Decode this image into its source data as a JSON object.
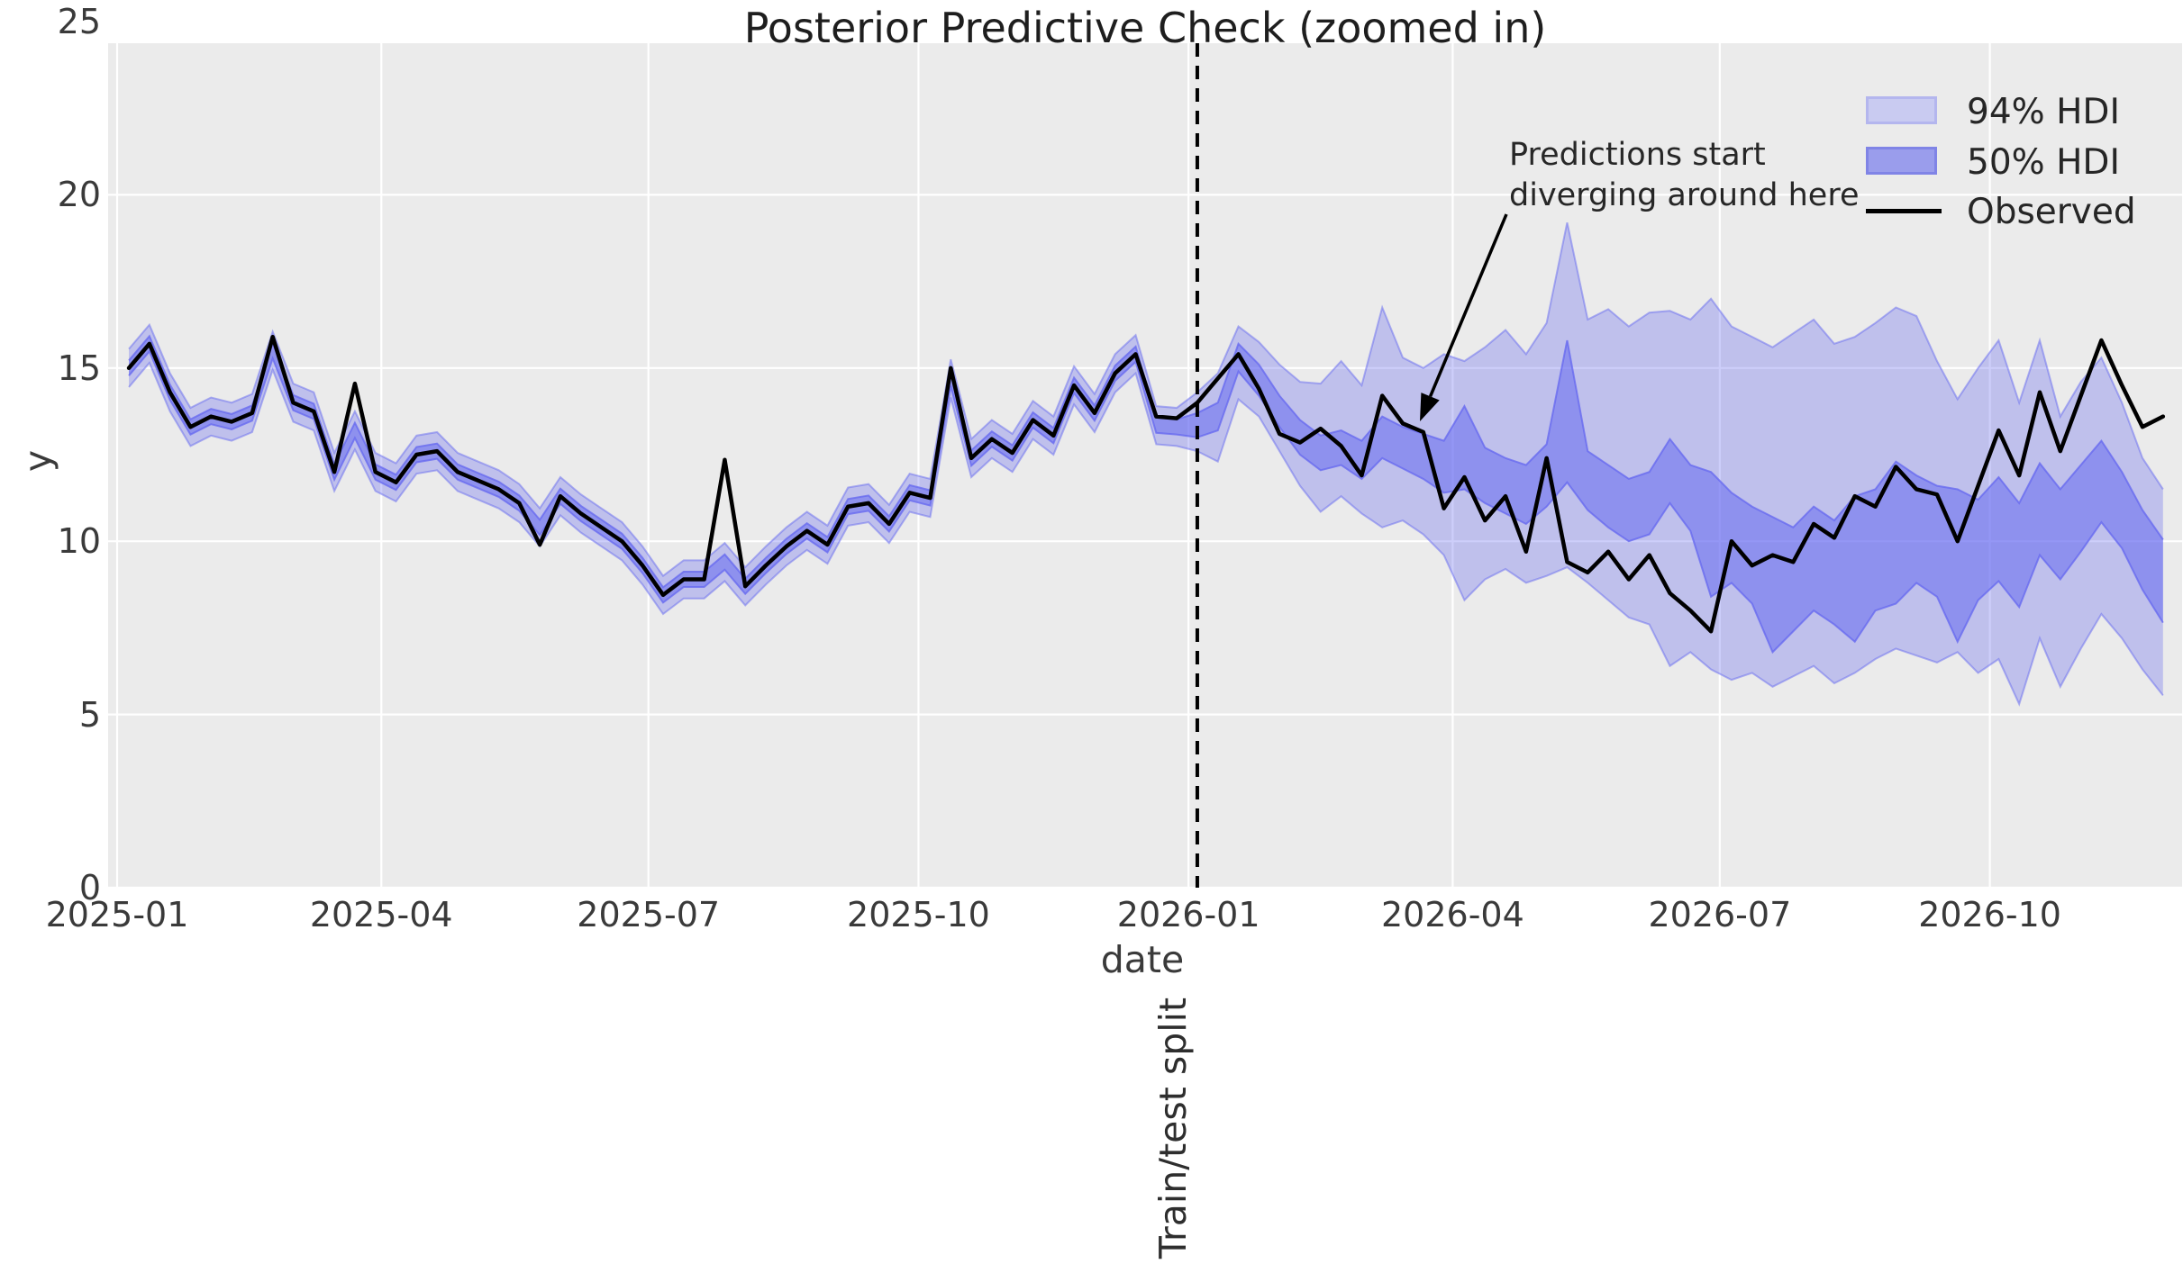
{
  "title": "Posterior Predictive Check (zoomed in)",
  "axes": {
    "x_label": "date",
    "y_label": "y",
    "x_tick_labels": [
      "2025-01",
      "2025-04",
      "2025-07",
      "2025-10",
      "2026-01",
      "2026-04",
      "2026-07",
      "2026-10"
    ],
    "x_tick_days": [
      0,
      90,
      181,
      273,
      365,
      455,
      546,
      638
    ],
    "y_tick_labels": [
      "0",
      "5",
      "10",
      "15",
      "20",
      "25"
    ],
    "y_tick_values": [
      0,
      5,
      10,
      15,
      20,
      25
    ],
    "ylim": [
      0,
      25
    ],
    "grid": "white solid on light-gray axes background"
  },
  "legend": {
    "items": [
      {
        "label": "94% HDI",
        "swatch": "band-light"
      },
      {
        "label": "50% HDI",
        "swatch": "band-dark"
      },
      {
        "label": "Observed",
        "swatch": "black-line"
      }
    ],
    "position": "upper right, no frame"
  },
  "annotation": {
    "line1": "Predictions start",
    "line2": "diverging around here",
    "arrow": "black arrow pointing down-left to observed line near 2026-03"
  },
  "split_line_label": "Train/test split",
  "colors": {
    "figure_bg": "#ffffff",
    "axes_bg": "#ebebeb",
    "grid": "#ffffff",
    "band_base": "#6669f0",
    "hdi94_fill": "rgba(102,105,240,0.33)",
    "hdi50_fill": "rgba(102,105,240,0.55)",
    "hdi94_edge": "rgba(102,105,240,0.50)",
    "hdi50_edge": "rgba(102,105,240,0.78)",
    "observed_line": "#000000",
    "split_line": "#000000",
    "text": "#2a2a2a",
    "legend_swatch94_fill": "#c9cbf1",
    "legend_swatch94_edge": "#b4b6ee",
    "legend_swatch50_fill": "#9a9dec",
    "legend_swatch50_edge": "#8084e6"
  },
  "chart_data": {
    "type": "line",
    "description": "Weekly observed series with 50% and 94% posterior-predictive HDI bands; vertical dashed train/test split just after 2026-01.",
    "x_start_date": "2025-01-05",
    "x_freq_days": 7,
    "n_points": 100,
    "split_date": "2026-01-04",
    "split_week_index": 52,
    "xlim_days": [
      -4,
      700
    ],
    "ylim": [
      0,
      25
    ],
    "observed": [
      15.0,
      15.7,
      14.3,
      13.3,
      13.6,
      13.45,
      13.7,
      15.9,
      14.0,
      13.75,
      12.0,
      14.55,
      12.0,
      11.7,
      12.5,
      12.6,
      12.0,
      11.75,
      11.5,
      11.1,
      9.9,
      11.3,
      10.8,
      10.4,
      10.0,
      9.3,
      8.45,
      8.9,
      8.9,
      12.35,
      8.7,
      9.3,
      9.85,
      10.3,
      9.9,
      11.0,
      11.1,
      10.5,
      11.4,
      11.25,
      15.0,
      12.4,
      12.95,
      12.55,
      13.5,
      13.05,
      14.5,
      13.7,
      14.85,
      15.4,
      13.6,
      13.55,
      14.0,
      14.7,
      15.4,
      14.4,
      13.1,
      12.85,
      13.25,
      12.75,
      11.9,
      14.2,
      13.4,
      13.15,
      10.95,
      11.85,
      10.6,
      11.3,
      9.7,
      12.4,
      9.4,
      9.1,
      9.7,
      8.9,
      9.6,
      8.5,
      8.0,
      7.4,
      10.0,
      9.3,
      9.6,
      9.4,
      10.5,
      10.1,
      11.3,
      11.0,
      12.15,
      11.5,
      11.35,
      10.0,
      11.6,
      13.2,
      11.9,
      14.3,
      12.6,
      14.2,
      15.8,
      14.5,
      13.3,
      13.6
    ],
    "hdi94_lower": [
      14.45,
      15.15,
      13.75,
      12.75,
      13.05,
      12.9,
      13.15,
      14.95,
      13.45,
      13.2,
      11.45,
      12.65,
      11.45,
      11.15,
      11.95,
      12.05,
      11.45,
      11.2,
      10.95,
      10.55,
      9.85,
      10.75,
      10.25,
      9.85,
      9.45,
      8.75,
      7.9,
      8.35,
      8.35,
      8.85,
      8.15,
      8.75,
      9.3,
      9.75,
      9.35,
      10.45,
      10.55,
      9.95,
      10.85,
      10.7,
      14.15,
      11.85,
      12.4,
      12.0,
      12.95,
      12.5,
      13.95,
      13.15,
      14.3,
      14.85,
      12.8,
      12.75,
      12.6,
      12.3,
      14.1,
      13.6,
      12.6,
      11.6,
      10.85,
      11.3,
      10.8,
      10.4,
      10.6,
      10.2,
      9.6,
      8.3,
      8.9,
      9.2,
      8.8,
      9.0,
      9.25,
      8.8,
      8.3,
      7.8,
      7.6,
      6.4,
      6.8,
      6.3,
      6.0,
      6.2,
      5.8,
      6.1,
      6.4,
      5.9,
      6.2,
      6.6,
      6.9,
      6.7,
      6.5,
      6.8,
      6.2,
      6.6,
      5.3,
      7.2,
      5.8,
      6.9,
      7.9,
      7.2,
      6.3,
      5.55
    ],
    "hdi50_lower": [
      14.78,
      15.48,
      14.08,
      13.08,
      13.38,
      13.23,
      13.48,
      15.28,
      13.78,
      13.53,
      11.78,
      12.98,
      11.78,
      11.48,
      12.28,
      12.38,
      11.78,
      11.53,
      11.28,
      10.88,
      10.18,
      11.08,
      10.58,
      10.18,
      9.78,
      9.08,
      8.23,
      8.68,
      8.68,
      9.18,
      8.48,
      9.08,
      9.63,
      10.08,
      9.68,
      10.78,
      10.88,
      10.28,
      11.18,
      11.03,
      14.48,
      12.18,
      12.73,
      12.33,
      13.28,
      12.83,
      14.28,
      13.48,
      14.63,
      15.18,
      13.13,
      13.08,
      13.0,
      13.2,
      14.9,
      14.2,
      13.3,
      12.5,
      12.05,
      12.2,
      11.8,
      12.4,
      12.1,
      11.8,
      11.4,
      11.5,
      11.1,
      10.8,
      10.5,
      11.0,
      11.7,
      10.9,
      10.4,
      10.0,
      10.2,
      11.1,
      10.3,
      8.4,
      8.8,
      8.2,
      6.8,
      7.4,
      8.0,
      7.6,
      7.1,
      8.0,
      8.2,
      8.8,
      8.4,
      7.1,
      8.3,
      8.85,
      8.1,
      9.6,
      8.9,
      9.7,
      10.55,
      9.8,
      8.6,
      7.65
    ],
    "hdi50_upper": [
      15.22,
      15.92,
      14.52,
      13.52,
      13.82,
      13.67,
      13.92,
      15.72,
      14.22,
      13.97,
      12.22,
      13.42,
      12.22,
      11.92,
      12.72,
      12.82,
      12.22,
      11.97,
      11.72,
      11.32,
      10.62,
      11.52,
      11.02,
      10.62,
      10.22,
      9.52,
      8.67,
      9.12,
      9.12,
      9.62,
      8.92,
      9.52,
      10.07,
      10.52,
      10.12,
      11.22,
      11.32,
      10.72,
      11.62,
      11.47,
      14.92,
      12.62,
      13.17,
      12.77,
      13.72,
      13.27,
      14.72,
      13.92,
      15.07,
      15.62,
      13.57,
      13.52,
      13.7,
      14.0,
      15.7,
      15.1,
      14.2,
      13.5,
      13.05,
      13.2,
      12.9,
      13.6,
      13.3,
      13.1,
      12.9,
      13.9,
      12.7,
      12.4,
      12.2,
      12.8,
      15.8,
      12.6,
      12.2,
      11.8,
      12.0,
      12.95,
      12.2,
      12.0,
      11.4,
      11.0,
      10.7,
      10.4,
      11.0,
      10.6,
      11.3,
      11.5,
      12.3,
      11.9,
      11.6,
      11.5,
      11.2,
      11.85,
      11.1,
      12.25,
      11.5,
      12.2,
      12.9,
      12.0,
      10.9,
      10.05
    ],
    "hdi94_upper": [
      15.55,
      16.25,
      14.85,
      13.85,
      14.15,
      14.0,
      14.25,
      16.05,
      14.55,
      14.3,
      12.55,
      13.75,
      12.55,
      12.25,
      13.05,
      13.15,
      12.55,
      12.3,
      12.05,
      11.65,
      10.95,
      11.85,
      11.35,
      10.95,
      10.55,
      9.85,
      9.0,
      9.45,
      9.45,
      9.95,
      9.25,
      9.85,
      10.4,
      10.85,
      10.45,
      11.55,
      11.65,
      11.05,
      11.95,
      11.8,
      15.25,
      12.95,
      13.5,
      13.1,
      14.05,
      13.6,
      15.05,
      14.25,
      15.4,
      15.95,
      13.9,
      13.85,
      14.3,
      14.85,
      16.2,
      15.75,
      15.1,
      14.6,
      14.55,
      15.2,
      14.5,
      16.75,
      15.3,
      15.0,
      15.4,
      15.2,
      15.6,
      16.1,
      15.4,
      16.3,
      19.2,
      16.4,
      16.7,
      16.2,
      16.6,
      16.65,
      16.4,
      17.0,
      16.2,
      15.9,
      15.6,
      16.0,
      16.4,
      15.7,
      15.9,
      16.3,
      16.75,
      16.5,
      15.2,
      14.1,
      15.0,
      15.8,
      14.0,
      15.8,
      13.6,
      14.6,
      15.3,
      14.0,
      12.4,
      11.5
    ]
  }
}
